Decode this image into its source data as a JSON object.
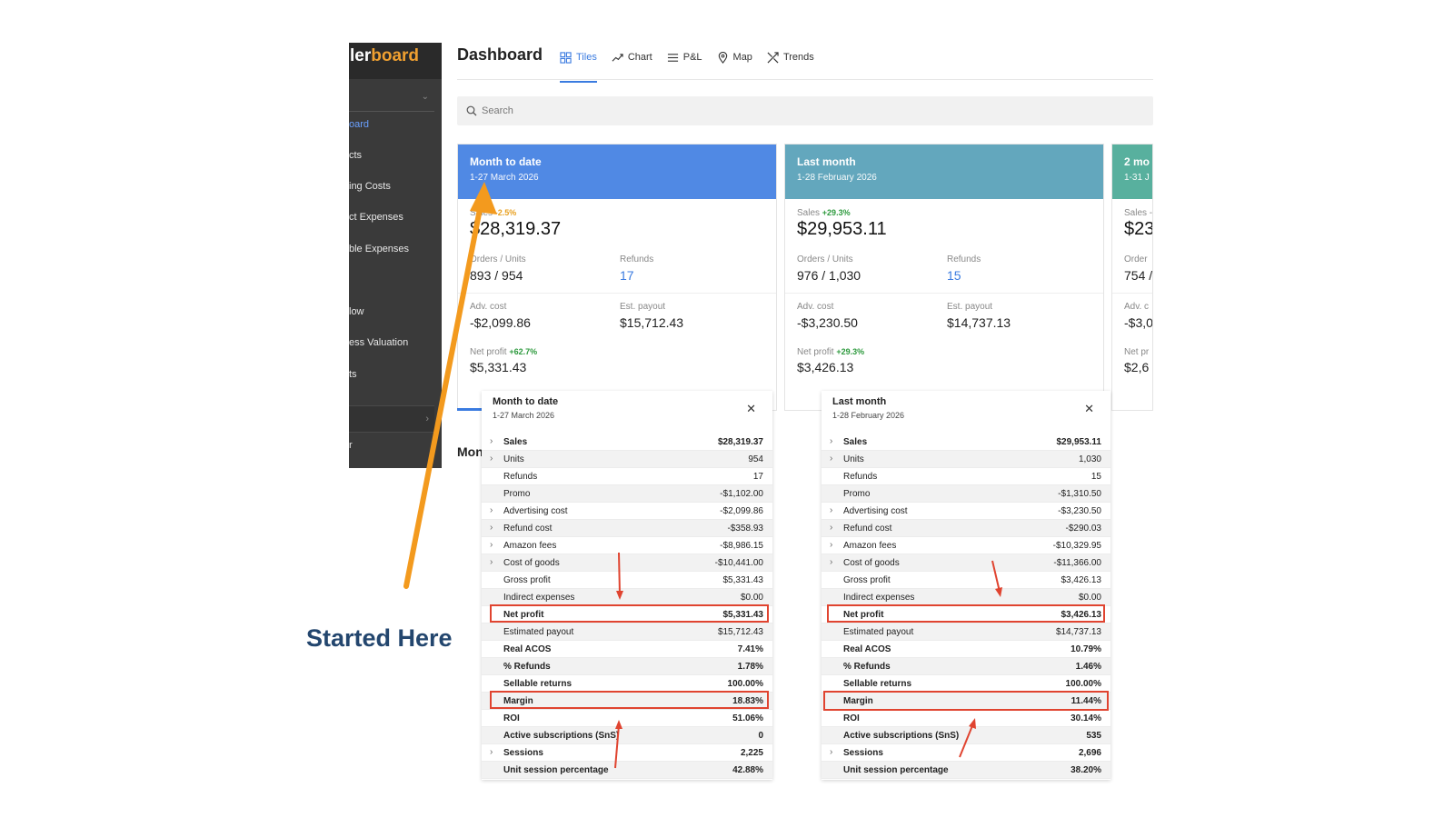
{
  "app": {
    "logo_fragment": "ler",
    "logo_brand": "board"
  },
  "sidebar": {
    "items": [
      {
        "label": "oard",
        "active": true
      },
      {
        "label": "cts"
      },
      {
        "label": "ing Costs"
      },
      {
        "label": "ct Expenses"
      },
      {
        "label": "ble Expenses"
      },
      {
        "label": "low"
      },
      {
        "label": "ess Valuation"
      },
      {
        "label": "ts"
      },
      {
        "label": "r"
      }
    ]
  },
  "header": {
    "title": "Dashboard",
    "tabs": [
      {
        "label": "Tiles",
        "icon": "grid-icon",
        "active": true
      },
      {
        "label": "Chart",
        "icon": "line-chart-icon"
      },
      {
        "label": "P&L",
        "icon": "list-icon"
      },
      {
        "label": "Map",
        "icon": "map-pin-icon"
      },
      {
        "label": "Trends",
        "icon": "trends-icon"
      }
    ]
  },
  "search": {
    "placeholder": "Search"
  },
  "cards": [
    {
      "title": "Month to date",
      "period": "1-27 March 2026",
      "color": "#5089e4",
      "sales_label": "Sales",
      "sales_change": "-2.5%",
      "sales_change_dir": "neg",
      "sales": "$28,319.37",
      "orders_label": "Orders / Units",
      "orders": "893 / 954",
      "refunds_label": "Refunds",
      "refunds": "17",
      "adv_label": "Adv. cost",
      "adv": "-$2,099.86",
      "payout_label": "Est. payout",
      "payout": "$15,712.43",
      "net_label": "Net profit",
      "net_change": "+62.7%",
      "net": "$5,331.43"
    },
    {
      "title": "Last month",
      "period": "1-28 February 2026",
      "color": "#63a7bd",
      "sales_label": "Sales",
      "sales_change": "+29.3%",
      "sales_change_dir": "pos",
      "sales": "$29,953.11",
      "orders_label": "Orders / Units",
      "orders": "976 / 1,030",
      "refunds_label": "Refunds",
      "refunds": "15",
      "adv_label": "Adv. cost",
      "adv": "-$3,230.50",
      "payout_label": "Est. payout",
      "payout": "$14,737.13",
      "net_label": "Net profit",
      "net_change": "+29.3%",
      "net": "$3,426.13"
    },
    {
      "title": "2 mo",
      "period": "1-31 J",
      "color": "#58b09e",
      "sales_label": "Sales -",
      "sales": "$23",
      "orders_label": "Order",
      "orders": "754 /",
      "adv_label": "Adv. c",
      "adv": "-$3,0",
      "net_label": "Net pr",
      "net": "$2,6"
    }
  ],
  "section_title": "Mon",
  "panels": [
    {
      "title": "Month to date",
      "period": "1-27 March 2026",
      "rows": [
        {
          "label": "Sales",
          "value": "$28,319.37",
          "chev": true,
          "bold": true
        },
        {
          "label": "Units",
          "value": "954",
          "chev": true
        },
        {
          "label": "Refunds",
          "value": "17"
        },
        {
          "label": "Promo",
          "value": "-$1,102.00"
        },
        {
          "label": "Advertising cost",
          "value": "-$2,099.86",
          "chev": true
        },
        {
          "label": "Refund cost",
          "value": "-$358.93",
          "chev": true
        },
        {
          "label": "Amazon fees",
          "value": "-$8,986.15",
          "chev": true
        },
        {
          "label": "Cost of goods",
          "value": "-$10,441.00",
          "chev": true
        },
        {
          "label": "Gross profit",
          "value": "$5,331.43"
        },
        {
          "label": "Indirect expenses",
          "value": "$0.00"
        },
        {
          "label": "Net profit",
          "value": "$5,331.43",
          "bold": true
        },
        {
          "label": "Estimated payout",
          "value": "$15,712.43"
        },
        {
          "label": "Real ACOS",
          "value": "7.41%",
          "bold": true
        },
        {
          "label": "% Refunds",
          "value": "1.78%",
          "bold": true
        },
        {
          "label": "Sellable returns",
          "value": "100.00%",
          "bold": true
        },
        {
          "label": "Margin",
          "value": "18.83%",
          "bold": true
        },
        {
          "label": "ROI",
          "value": "51.06%",
          "bold": true
        },
        {
          "label": "Active subscriptions (SnS)",
          "value": "0",
          "bold": true
        },
        {
          "label": "Sessions",
          "value": "2,225",
          "chev": true,
          "bold": true
        },
        {
          "label": "Unit session percentage",
          "value": "42.88%",
          "bold": true
        }
      ]
    },
    {
      "title": "Last month",
      "period": "1-28 February 2026",
      "rows": [
        {
          "label": "Sales",
          "value": "$29,953.11",
          "chev": true,
          "bold": true
        },
        {
          "label": "Units",
          "value": "1,030",
          "chev": true
        },
        {
          "label": "Refunds",
          "value": "15"
        },
        {
          "label": "Promo",
          "value": "-$1,310.50"
        },
        {
          "label": "Advertising cost",
          "value": "-$3,230.50",
          "chev": true
        },
        {
          "label": "Refund cost",
          "value": "-$290.03",
          "chev": true
        },
        {
          "label": "Amazon fees",
          "value": "-$10,329.95",
          "chev": true
        },
        {
          "label": "Cost of goods",
          "value": "-$11,366.00",
          "chev": true
        },
        {
          "label": "Gross profit",
          "value": "$3,426.13"
        },
        {
          "label": "Indirect expenses",
          "value": "$0.00"
        },
        {
          "label": "Net profit",
          "value": "$3,426.13",
          "bold": true
        },
        {
          "label": "Estimated payout",
          "value": "$14,737.13"
        },
        {
          "label": "Real ACOS",
          "value": "10.79%",
          "bold": true
        },
        {
          "label": "% Refunds",
          "value": "1.46%",
          "bold": true
        },
        {
          "label": "Sellable returns",
          "value": "100.00%",
          "bold": true
        },
        {
          "label": "Margin",
          "value": "11.44%",
          "bold": true
        },
        {
          "label": "ROI",
          "value": "30.14%",
          "bold": true
        },
        {
          "label": "Active subscriptions (SnS)",
          "value": "535",
          "bold": true
        },
        {
          "label": "Sessions",
          "value": "2,696",
          "chev": true,
          "bold": true
        },
        {
          "label": "Unit session percentage",
          "value": "38.20%",
          "bold": true
        }
      ]
    }
  ],
  "annotation": {
    "text": "Started Here",
    "arrow_color": "#f39a1e",
    "highlight_color": "#e04430"
  }
}
